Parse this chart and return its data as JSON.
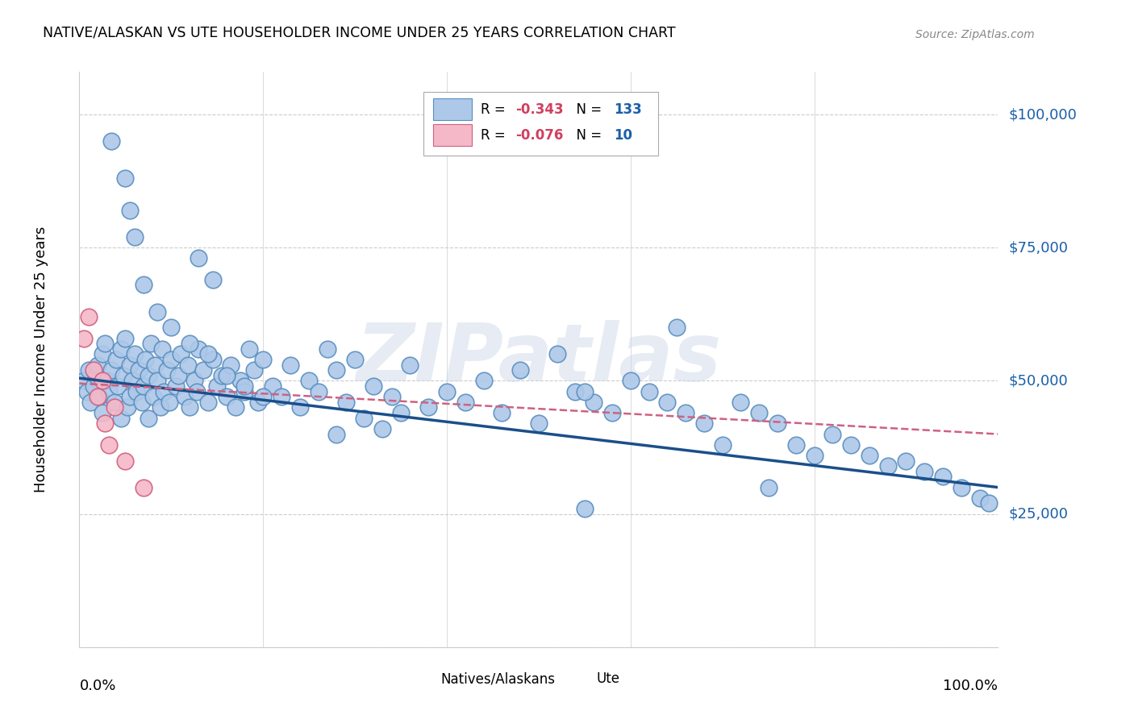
{
  "title": "NATIVE/ALASKAN VS UTE HOUSEHOLDER INCOME UNDER 25 YEARS CORRELATION CHART",
  "source": "Source: ZipAtlas.com",
  "ylabel": "Householder Income Under 25 years",
  "ylabel_right_labels": [
    "$100,000",
    "$75,000",
    "$50,000",
    "$25,000"
  ],
  "ylabel_right_values": [
    100000,
    75000,
    50000,
    25000
  ],
  "xmin": 0.0,
  "xmax": 1.0,
  "ymin": 0,
  "ymax": 108000,
  "blue_color": "#adc8e8",
  "blue_edge_color": "#5a8fc0",
  "blue_line_color": "#1a4f8a",
  "pink_color": "#f4b8c8",
  "pink_edge_color": "#d06080",
  "pink_line_color": "#d06080",
  "watermark": "ZIPatlas",
  "legend_label_blue": "Natives/Alaskans",
  "legend_label_pink": "Ute",
  "blue_R": "-0.343",
  "blue_N": "133",
  "pink_R": "-0.076",
  "pink_N": "10",
  "blue_points_x": [
    0.005,
    0.008,
    0.01,
    0.012,
    0.015,
    0.018,
    0.02,
    0.022,
    0.025,
    0.025,
    0.028,
    0.03,
    0.032,
    0.035,
    0.038,
    0.04,
    0.042,
    0.045,
    0.045,
    0.048,
    0.05,
    0.052,
    0.055,
    0.055,
    0.058,
    0.06,
    0.062,
    0.065,
    0.068,
    0.07,
    0.072,
    0.075,
    0.075,
    0.078,
    0.08,
    0.082,
    0.085,
    0.088,
    0.09,
    0.092,
    0.095,
    0.098,
    0.1,
    0.105,
    0.108,
    0.11,
    0.115,
    0.118,
    0.12,
    0.125,
    0.128,
    0.13,
    0.135,
    0.14,
    0.145,
    0.15,
    0.155,
    0.16,
    0.165,
    0.17,
    0.175,
    0.18,
    0.185,
    0.19,
    0.195,
    0.2,
    0.21,
    0.22,
    0.23,
    0.24,
    0.25,
    0.26,
    0.27,
    0.28,
    0.29,
    0.3,
    0.32,
    0.34,
    0.36,
    0.38,
    0.28,
    0.31,
    0.33,
    0.35,
    0.4,
    0.42,
    0.44,
    0.46,
    0.48,
    0.5,
    0.52,
    0.54,
    0.56,
    0.58,
    0.6,
    0.62,
    0.64,
    0.66,
    0.68,
    0.7,
    0.72,
    0.74,
    0.76,
    0.78,
    0.8,
    0.82,
    0.84,
    0.86,
    0.88,
    0.9,
    0.92,
    0.94,
    0.96,
    0.98,
    0.99,
    0.07,
    0.085,
    0.1,
    0.12,
    0.14,
    0.16,
    0.18,
    0.2,
    0.55,
    0.65,
    0.75,
    0.035,
    0.05,
    0.055,
    0.06,
    0.13,
    0.145,
    0.55
  ],
  "blue_points_y": [
    50000,
    48000,
    52000,
    46000,
    49000,
    51000,
    53000,
    47000,
    55000,
    44000,
    57000,
    50000,
    48000,
    52000,
    46000,
    54000,
    49000,
    56000,
    43000,
    51000,
    58000,
    45000,
    53000,
    47000,
    50000,
    55000,
    48000,
    52000,
    46000,
    49000,
    54000,
    51000,
    43000,
    57000,
    47000,
    53000,
    50000,
    45000,
    56000,
    48000,
    52000,
    46000,
    54000,
    49000,
    51000,
    55000,
    47000,
    53000,
    45000,
    50000,
    48000,
    56000,
    52000,
    46000,
    54000,
    49000,
    51000,
    47000,
    53000,
    45000,
    50000,
    48000,
    56000,
    52000,
    46000,
    54000,
    49000,
    47000,
    53000,
    45000,
    50000,
    48000,
    56000,
    52000,
    46000,
    54000,
    49000,
    47000,
    53000,
    45000,
    40000,
    43000,
    41000,
    44000,
    48000,
    46000,
    50000,
    44000,
    52000,
    42000,
    55000,
    48000,
    46000,
    44000,
    50000,
    48000,
    46000,
    44000,
    42000,
    38000,
    46000,
    44000,
    42000,
    38000,
    36000,
    40000,
    38000,
    36000,
    34000,
    35000,
    33000,
    32000,
    30000,
    28000,
    27000,
    68000,
    63000,
    60000,
    57000,
    55000,
    51000,
    49000,
    47000,
    48000,
    60000,
    30000,
    95000,
    88000,
    82000,
    77000,
    73000,
    69000,
    26000
  ],
  "pink_points_x": [
    0.005,
    0.01,
    0.015,
    0.02,
    0.025,
    0.028,
    0.032,
    0.038,
    0.05,
    0.07
  ],
  "pink_points_y": [
    58000,
    62000,
    52000,
    47000,
    50000,
    42000,
    38000,
    45000,
    35000,
    30000
  ],
  "grid_y": [
    0,
    25000,
    50000,
    75000,
    100000
  ],
  "grid_x": [
    0.0,
    0.2,
    0.4,
    0.6,
    0.8,
    1.0
  ]
}
